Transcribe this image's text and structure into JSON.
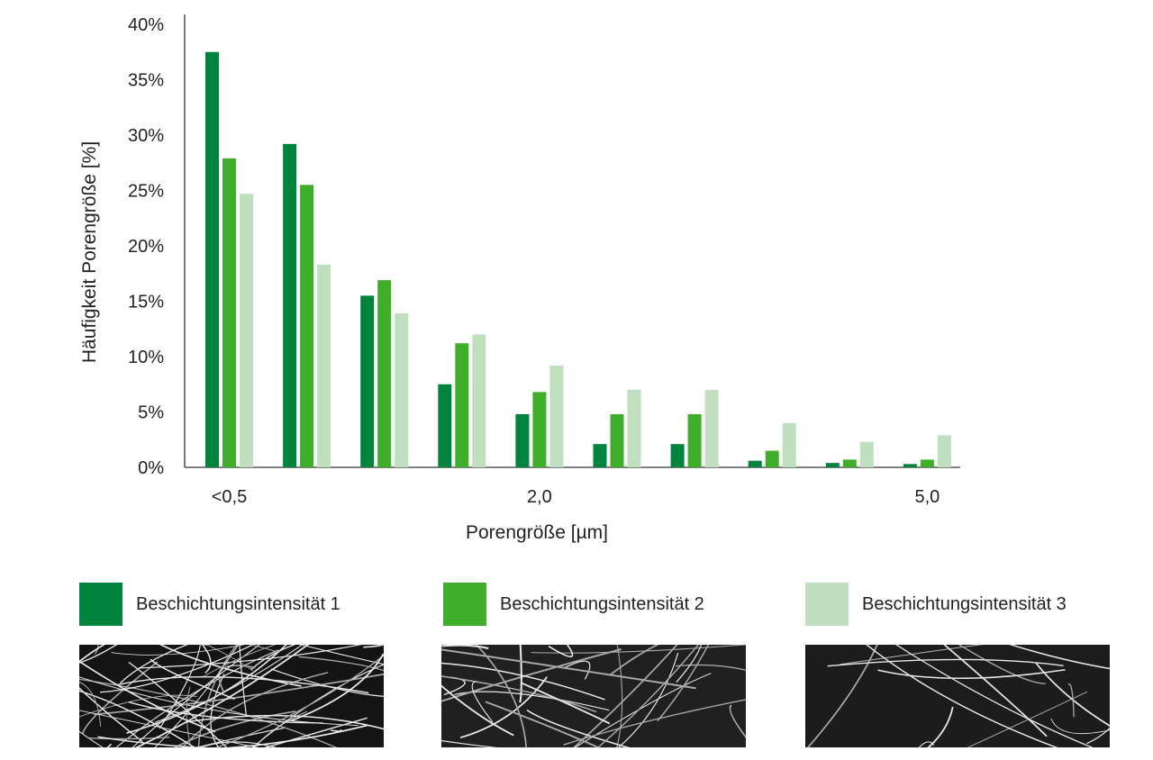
{
  "chart_data": {
    "type": "bar",
    "title": "",
    "ylabel": "Häufigkeit Porengröße [%]",
    "xlabel": "Porengröße [µm]",
    "ylim": [
      0,
      40
    ],
    "yticks": [
      "0%",
      "5%",
      "10%",
      "15%",
      "20%",
      "25%",
      "30%",
      "35%",
      "40%"
    ],
    "category_labels": [
      "<0,5",
      "",
      "",
      "",
      "2,0",
      "",
      "",
      "",
      "",
      "5,0"
    ],
    "series": [
      {
        "name": "Beschichtungsintensität 1",
        "color": "#00843d",
        "values": [
          37.5,
          29.2,
          15.5,
          7.5,
          4.8,
          2.1,
          2.1,
          0.6,
          0.4,
          0.3
        ]
      },
      {
        "name": "Beschichtungsintensität 2",
        "color": "#3fae2a",
        "values": [
          27.9,
          25.5,
          16.9,
          11.2,
          6.8,
          4.8,
          4.8,
          1.5,
          0.7,
          0.7
        ]
      },
      {
        "name": "Beschichtungsintensität 3",
        "color": "#bfdfbe",
        "values": [
          24.7,
          18.3,
          13.9,
          12.0,
          9.2,
          7.0,
          7.0,
          4.0,
          2.3,
          2.9
        ]
      }
    ],
    "grid": false,
    "legend_position": "bottom"
  },
  "legend": [
    {
      "label": "Beschichtungsintensität 1",
      "color": "#00843d"
    },
    {
      "label": "Beschichtungsintensität 2",
      "color": "#3fae2a"
    },
    {
      "label": "Beschichtungsintensität 3",
      "color": "#bfdfbe"
    }
  ],
  "images": [
    {
      "name": "fiber-image-intensity-1",
      "description_icon": "fiber-micrograph-icon"
    },
    {
      "name": "fiber-image-intensity-2",
      "description_icon": "fiber-micrograph-icon"
    },
    {
      "name": "fiber-image-intensity-3",
      "description_icon": "fiber-micrograph-icon"
    }
  ]
}
